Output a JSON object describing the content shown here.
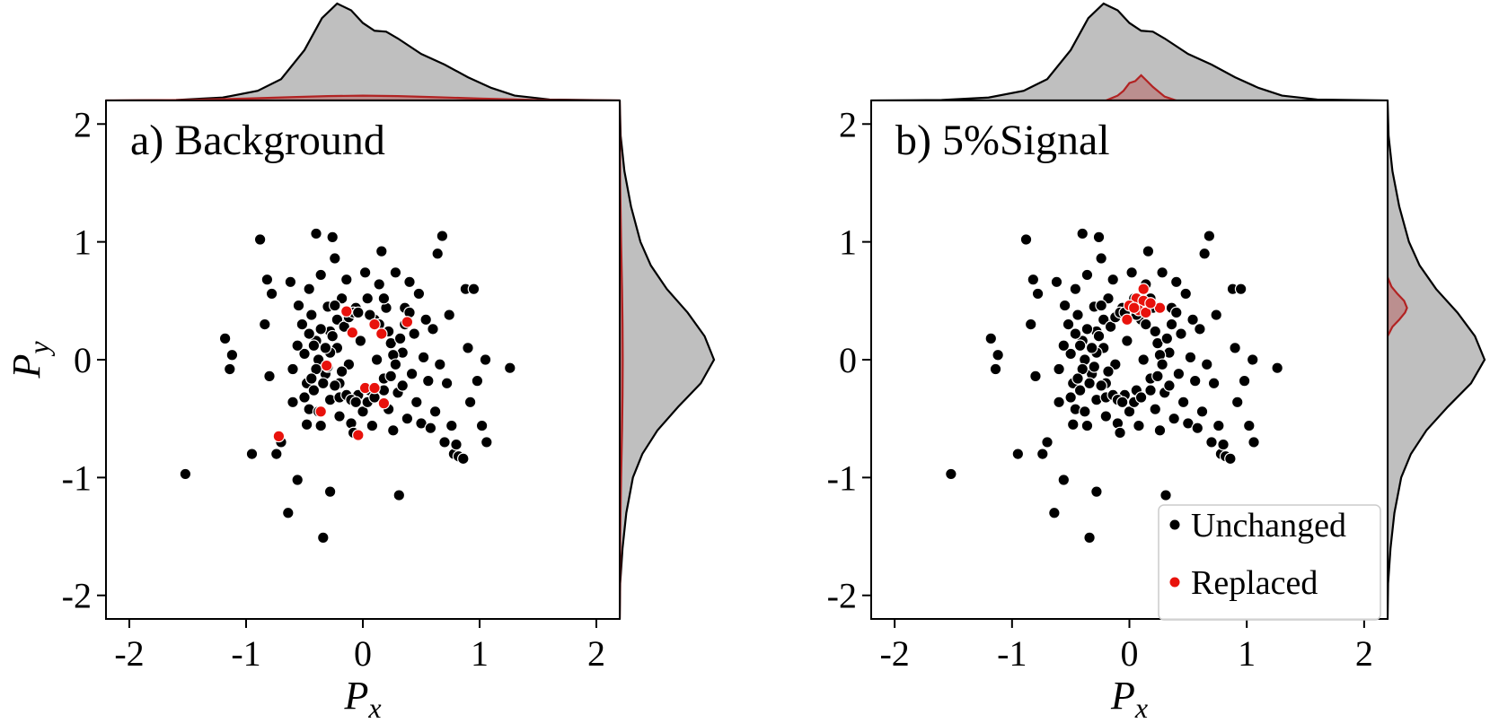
{
  "chart_data": [
    {
      "type": "scatter",
      "panel_label": "a)",
      "title": "Background",
      "xlabel": "P",
      "xlabel_sub": "x",
      "ylabel": "P",
      "ylabel_sub": "y",
      "xlim": [
        -2.2,
        2.2
      ],
      "ylim": [
        -2.2,
        2.2
      ],
      "xticks": [
        "-2",
        "-1",
        "0",
        "1",
        "2"
      ],
      "yticks": [
        "-2",
        "-1",
        "0",
        "1",
        "2"
      ],
      "grid": false,
      "marginals": "kde",
      "series": [
        {
          "color": "#000000",
          "points": [
            [
              -1.52,
              -0.97
            ],
            [
              -1.18,
              0.18
            ],
            [
              -1.12,
              0.04
            ],
            [
              -1.14,
              -0.08
            ],
            [
              -0.95,
              -0.8
            ],
            [
              -0.88,
              1.02
            ],
            [
              -0.82,
              0.68
            ],
            [
              -0.84,
              0.3
            ],
            [
              -0.78,
              0.56
            ],
            [
              -0.8,
              -0.14
            ],
            [
              -0.74,
              -0.8
            ],
            [
              -0.7,
              -0.7
            ],
            [
              -0.62,
              0.66
            ],
            [
              -0.6,
              -0.08
            ],
            [
              -0.6,
              -0.36
            ],
            [
              -0.56,
              -1.02
            ],
            [
              -0.64,
              -1.3
            ],
            [
              -0.55,
              0.46
            ],
            [
              -0.52,
              0.3
            ],
            [
              -0.5,
              0.05
            ],
            [
              -0.48,
              -0.2
            ],
            [
              -0.48,
              -0.55
            ],
            [
              -0.46,
              0.6
            ],
            [
              -0.46,
              -0.42
            ],
            [
              -0.44,
              0.38
            ],
            [
              -0.42,
              -0.26
            ],
            [
              -0.4,
              1.07
            ],
            [
              -0.4,
              0.16
            ],
            [
              -0.38,
              0.0
            ],
            [
              -0.38,
              -0.44
            ],
            [
              -0.36,
              0.72
            ],
            [
              -0.36,
              -0.56
            ],
            [
              -0.34,
              -1.51
            ],
            [
              -0.32,
              -0.12
            ],
            [
              -0.3,
              0.45
            ],
            [
              -0.28,
              0.24
            ],
            [
              -0.28,
              -0.34
            ],
            [
              -0.28,
              -1.12
            ],
            [
              -0.26,
              1.04
            ],
            [
              -0.24,
              0.86
            ],
            [
              -0.22,
              0.1
            ],
            [
              -0.2,
              -0.2
            ],
            [
              -0.2,
              -0.48
            ],
            [
              -0.18,
              0.52
            ],
            [
              -0.16,
              0.32
            ],
            [
              -0.14,
              0.68
            ],
            [
              -0.12,
              -0.04
            ],
            [
              -0.1,
              -0.54
            ],
            [
              -0.08,
              -0.62
            ],
            [
              -0.06,
              0.44
            ],
            [
              -0.04,
              -0.3
            ],
            [
              -0.02,
              0.16
            ],
            [
              0.0,
              -0.44
            ],
            [
              0.02,
              0.74
            ],
            [
              0.04,
              0.52
            ],
            [
              0.06,
              -0.26
            ],
            [
              0.08,
              -0.56
            ],
            [
              0.1,
              0.34
            ],
            [
              0.12,
              0.0
            ],
            [
              0.14,
              0.64
            ],
            [
              0.16,
              0.92
            ],
            [
              0.18,
              -0.16
            ],
            [
              0.2,
              0.44
            ],
            [
              0.22,
              -0.42
            ],
            [
              0.24,
              0.14
            ],
            [
              0.26,
              -0.6
            ],
            [
              0.28,
              0.74
            ],
            [
              0.3,
              -0.28
            ],
            [
              0.31,
              -1.15
            ],
            [
              0.34,
              0.06
            ],
            [
              0.36,
              0.44
            ],
            [
              0.38,
              -0.5
            ],
            [
              0.4,
              0.66
            ],
            [
              0.42,
              -0.12
            ],
            [
              0.44,
              0.22
            ],
            [
              0.46,
              -0.36
            ],
            [
              0.48,
              0.56
            ],
            [
              0.5,
              -0.54
            ],
            [
              0.52,
              0.02
            ],
            [
              0.54,
              0.34
            ],
            [
              0.56,
              -0.18
            ],
            [
              0.58,
              -0.58
            ],
            [
              0.6,
              0.26
            ],
            [
              0.62,
              -0.44
            ],
            [
              0.64,
              0.9
            ],
            [
              0.66,
              -0.04
            ],
            [
              0.68,
              1.05
            ],
            [
              0.7,
              -0.7
            ],
            [
              0.72,
              -0.2
            ],
            [
              0.74,
              0.38
            ],
            [
              0.76,
              -0.56
            ],
            [
              0.78,
              -0.8
            ],
            [
              0.8,
              -0.72
            ],
            [
              0.82,
              -0.82
            ],
            [
              0.86,
              -0.84
            ],
            [
              0.88,
              0.6
            ],
            [
              0.9,
              0.1
            ],
            [
              0.92,
              -0.36
            ],
            [
              0.95,
              0.6
            ],
            [
              0.98,
              -0.18
            ],
            [
              1.02,
              -0.56
            ],
            [
              1.06,
              -0.7
            ],
            [
              1.05,
              0.0
            ],
            [
              1.26,
              -0.07
            ],
            [
              -0.3,
              -0.06
            ],
            [
              -0.28,
              0.06
            ],
            [
              -0.26,
              0.2
            ],
            [
              -0.24,
              -0.22
            ],
            [
              -0.22,
              0.34
            ],
            [
              -0.2,
              -0.32
            ],
            [
              -0.18,
              -0.1
            ],
            [
              -0.16,
              0.28
            ],
            [
              -0.14,
              -0.3
            ],
            [
              -0.12,
              0.36
            ],
            [
              -0.1,
              -0.34
            ],
            [
              -0.08,
              0.4
            ],
            [
              -0.06,
              -0.36
            ],
            [
              -0.04,
              0.4
            ],
            [
              0.04,
              -0.36
            ],
            [
              0.06,
              0.38
            ],
            [
              0.1,
              -0.32
            ],
            [
              0.14,
              0.3
            ],
            [
              0.18,
              -0.26
            ],
            [
              0.22,
              0.24
            ],
            [
              0.24,
              -0.14
            ],
            [
              0.26,
              0.04
            ],
            [
              0.28,
              -0.04
            ],
            [
              -0.32,
              0.1
            ],
            [
              -0.34,
              -0.2
            ],
            [
              -0.36,
              0.26
            ],
            [
              -0.4,
              -0.08
            ],
            [
              -0.42,
              0.12
            ],
            [
              -0.44,
              -0.16
            ],
            [
              0.32,
              0.18
            ],
            [
              0.34,
              -0.22
            ],
            [
              0.36,
              0.3
            ],
            [
              -0.46,
              0.22
            ],
            [
              -0.5,
              -0.32
            ],
            [
              0.4,
              0.4
            ],
            [
              -0.24,
              0.46
            ],
            [
              0.18,
              0.52
            ],
            [
              -0.56,
              0.12
            ]
          ]
        },
        {
          "color": "#e8120c",
          "points": [
            [
              -0.14,
              0.41
            ],
            [
              -0.09,
              0.23
            ],
            [
              -0.31,
              -0.05
            ],
            [
              0.1,
              0.3
            ],
            [
              0.16,
              0.22
            ],
            [
              0.38,
              0.32
            ],
            [
              0.02,
              -0.24
            ],
            [
              0.1,
              -0.24
            ],
            [
              0.18,
              -0.37
            ],
            [
              -0.36,
              -0.44
            ],
            [
              -0.04,
              -0.64
            ],
            [
              -0.72,
              -0.65
            ]
          ]
        }
      ],
      "marginal_x": {
        "all": {
          "color": "#bfbfbf",
          "x": [
            -2.2,
            -1.6,
            -1.2,
            -0.9,
            -0.7,
            -0.5,
            -0.35,
            -0.22,
            -0.1,
            0.0,
            0.1,
            0.2,
            0.3,
            0.5,
            0.7,
            0.9,
            1.1,
            1.3,
            1.6,
            2.2
          ],
          "y": [
            0.0,
            0.005,
            0.03,
            0.1,
            0.22,
            0.52,
            0.85,
            1.0,
            0.93,
            0.8,
            0.72,
            0.71,
            0.64,
            0.48,
            0.37,
            0.24,
            0.13,
            0.05,
            0.01,
            0.0
          ]
        },
        "replaced": {
          "color": "#b22222",
          "x": [
            -2.2,
            -1.5,
            -1.0,
            -0.6,
            -0.3,
            0.0,
            0.3,
            0.6,
            1.0,
            1.5,
            2.2
          ],
          "y": [
            0.0,
            0.005,
            0.02,
            0.035,
            0.045,
            0.05,
            0.045,
            0.035,
            0.02,
            0.005,
            0.0
          ]
        }
      },
      "marginal_y": {
        "all": {
          "color": "#bfbfbf",
          "y": [
            -2.2,
            -1.9,
            -1.6,
            -1.3,
            -1.0,
            -0.8,
            -0.6,
            -0.4,
            -0.2,
            0.0,
            0.2,
            0.4,
            0.6,
            0.8,
            1.0,
            1.3,
            1.6,
            1.9,
            2.2
          ],
          "x": [
            0.0,
            0.005,
            0.03,
            0.07,
            0.14,
            0.24,
            0.4,
            0.62,
            0.86,
            1.0,
            0.9,
            0.72,
            0.5,
            0.33,
            0.22,
            0.12,
            0.05,
            0.01,
            0.0
          ]
        },
        "replaced": {
          "color": "#b22222",
          "y": [
            -2.2,
            -1.5,
            -1.0,
            -0.6,
            -0.3,
            0.0,
            0.3,
            0.6,
            1.0,
            1.5,
            2.2
          ],
          "x": [
            0.0,
            0.005,
            0.015,
            0.025,
            0.03,
            0.032,
            0.03,
            0.025,
            0.015,
            0.005,
            0.0
          ]
        }
      }
    },
    {
      "type": "scatter",
      "panel_label": "b)",
      "title": "5%Signal",
      "xlabel": "P",
      "xlabel_sub": "x",
      "xlim": [
        -2.2,
        2.2
      ],
      "ylim": [
        -2.2,
        2.2
      ],
      "xticks": [
        "-2",
        "-1",
        "0",
        "1",
        "2"
      ],
      "yticks": [
        "-2",
        "-1",
        "0",
        "1",
        "2"
      ],
      "grid": false,
      "marginals": "kde",
      "legend": {
        "placement": "lower right",
        "entries": [
          {
            "label": "Unchanged",
            "color": "#000000"
          },
          {
            "label": "Replaced",
            "color": "#e8120c"
          }
        ]
      },
      "series": [
        {
          "name": "Unchanged",
          "color": "#000000",
          "points": "same_as_panel_a_unchanged"
        },
        {
          "name": "Replaced",
          "color": "#e8120c",
          "points": [
            [
              0.12,
              0.6
            ],
            [
              0.06,
              0.52
            ],
            [
              0.12,
              0.5
            ],
            [
              0.0,
              0.46
            ],
            [
              0.08,
              0.42
            ],
            [
              0.04,
              0.44
            ],
            [
              0.14,
              0.4
            ],
            [
              0.26,
              0.44
            ],
            [
              -0.02,
              0.34
            ],
            [
              0.18,
              0.48
            ]
          ]
        }
      ],
      "marginal_x": {
        "all": {
          "color": "#bfbfbf",
          "x": [
            -2.2,
            -1.6,
            -1.2,
            -0.9,
            -0.7,
            -0.5,
            -0.35,
            -0.22,
            -0.1,
            0.0,
            0.1,
            0.2,
            0.3,
            0.5,
            0.7,
            0.9,
            1.1,
            1.3,
            1.6,
            2.2
          ],
          "y": [
            0.0,
            0.005,
            0.03,
            0.1,
            0.22,
            0.52,
            0.85,
            1.0,
            0.93,
            0.8,
            0.72,
            0.71,
            0.64,
            0.48,
            0.37,
            0.24,
            0.13,
            0.05,
            0.01,
            0.0
          ]
        },
        "replaced": {
          "color": "#b22222",
          "x": [
            -0.2,
            -0.1,
            -0.05,
            0.0,
            0.05,
            0.1,
            0.15,
            0.2,
            0.3,
            0.4
          ],
          "y": [
            0.0,
            0.05,
            0.1,
            0.18,
            0.2,
            0.26,
            0.2,
            0.14,
            0.04,
            0.0
          ]
        }
      },
      "marginal_y": {
        "all": {
          "color": "#bfbfbf",
          "y": [
            -2.2,
            -1.9,
            -1.6,
            -1.3,
            -1.0,
            -0.8,
            -0.6,
            -0.4,
            -0.2,
            0.0,
            0.2,
            0.4,
            0.6,
            0.8,
            1.0,
            1.3,
            1.6,
            1.9,
            2.2
          ],
          "x": [
            0.0,
            0.005,
            0.03,
            0.07,
            0.14,
            0.24,
            0.4,
            0.62,
            0.86,
            1.0,
            0.9,
            0.72,
            0.5,
            0.33,
            0.22,
            0.12,
            0.05,
            0.01,
            0.0
          ]
        },
        "replaced": {
          "color": "#b22222",
          "y": [
            0.2,
            0.28,
            0.34,
            0.4,
            0.44,
            0.5,
            0.56,
            0.62,
            0.7
          ],
          "x": [
            0.0,
            0.05,
            0.12,
            0.18,
            0.2,
            0.17,
            0.1,
            0.04,
            0.0
          ]
        }
      }
    }
  ]
}
